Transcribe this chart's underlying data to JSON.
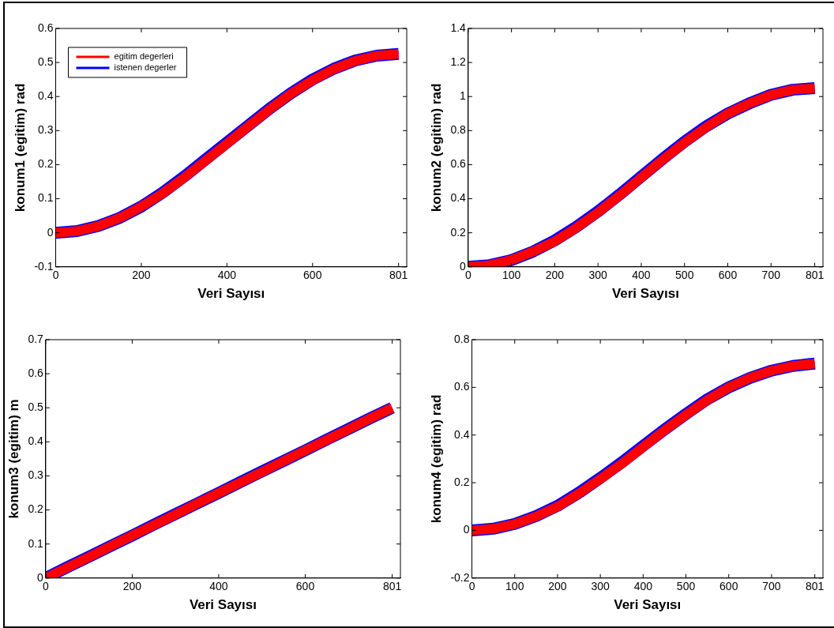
{
  "chart_data": [
    {
      "type": "line",
      "xlabel": "Veri Sayısı",
      "ylabel": "konum1 (egitim) rad",
      "legend": "top left",
      "x": [
        0,
        50,
        100,
        150,
        200,
        250,
        300,
        350,
        400,
        450,
        500,
        550,
        600,
        650,
        700,
        750,
        801
      ],
      "xlim": [
        0,
        820
      ],
      "xticks": [
        0,
        200,
        400,
        600,
        801
      ],
      "ylim": [
        -0.1,
        0.6
      ],
      "yticks": [
        -0.1,
        0,
        0.1,
        0.2,
        0.3,
        0.4,
        0.5,
        0.6
      ],
      "series": [
        {
          "name": "egitim degerleri",
          "color": "#ff0000",
          "values": [
            0,
            0.005,
            0.02,
            0.044,
            0.077,
            0.116,
            0.162,
            0.212,
            0.262,
            0.313,
            0.363,
            0.409,
            0.448,
            0.481,
            0.505,
            0.52,
            0.525
          ]
        },
        {
          "name": "istenen degerler",
          "color": "#0000ff",
          "values": [
            0,
            0.005,
            0.02,
            0.044,
            0.077,
            0.118,
            0.165,
            0.215,
            0.265,
            0.315,
            0.365,
            0.41,
            0.45,
            0.482,
            0.506,
            0.52,
            0.525
          ]
        }
      ]
    },
    {
      "type": "line",
      "xlabel": "Veri Sayısı",
      "ylabel": "konum2 (egitim) rad",
      "x": [
        0,
        50,
        100,
        150,
        200,
        250,
        300,
        350,
        400,
        450,
        500,
        550,
        600,
        650,
        700,
        750,
        801
      ],
      "xlim": [
        0,
        820
      ],
      "xticks": [
        0,
        100,
        200,
        300,
        400,
        500,
        600,
        700,
        801
      ],
      "ylim": [
        0,
        1.4
      ],
      "yticks": [
        0,
        0.2,
        0.4,
        0.6,
        0.8,
        1,
        1.2,
        1.4
      ],
      "series": [
        {
          "color": "#ff0000",
          "values": [
            0,
            0.01,
            0.04,
            0.09,
            0.15,
            0.23,
            0.32,
            0.42,
            0.525,
            0.63,
            0.73,
            0.82,
            0.9,
            0.96,
            1.01,
            1.04,
            1.05
          ]
        },
        {
          "color": "#0000ff",
          "values": [
            0,
            0.01,
            0.04,
            0.09,
            0.155,
            0.235,
            0.325,
            0.425,
            0.53,
            0.635,
            0.735,
            0.825,
            0.9,
            0.96,
            1.01,
            1.04,
            1.05
          ]
        }
      ]
    },
    {
      "type": "line",
      "xlabel": "Veri Sayısı",
      "ylabel": "konum3 (egitim) m",
      "x": [
        0,
        50,
        100,
        150,
        200,
        250,
        300,
        350,
        400,
        450,
        500,
        550,
        600,
        650,
        700,
        750,
        801
      ],
      "xlim": [
        0,
        820
      ],
      "xticks": [
        0,
        200,
        400,
        600,
        801
      ],
      "ylim": [
        0,
        0.7
      ],
      "yticks": [
        0,
        0.1,
        0.2,
        0.3,
        0.4,
        0.5,
        0.6,
        0.7
      ],
      "series": [
        {
          "color": "#ff0000",
          "values": [
            0,
            0.031,
            0.062,
            0.094,
            0.125,
            0.156,
            0.187,
            0.219,
            0.25,
            0.281,
            0.312,
            0.344,
            0.375,
            0.406,
            0.437,
            0.469,
            0.5
          ]
        },
        {
          "color": "#0000ff",
          "values": [
            0,
            0.032,
            0.063,
            0.094,
            0.125,
            0.157,
            0.188,
            0.219,
            0.25,
            0.282,
            0.313,
            0.344,
            0.375,
            0.407,
            0.438,
            0.469,
            0.5
          ]
        }
      ]
    },
    {
      "type": "line",
      "xlabel": "Veri Sayısı",
      "ylabel": "konum4 (egitim) rad",
      "x": [
        0,
        50,
        100,
        150,
        200,
        250,
        300,
        350,
        400,
        450,
        500,
        550,
        600,
        650,
        700,
        750,
        801
      ],
      "xlim": [
        0,
        820
      ],
      "xticks": [
        0,
        100,
        200,
        300,
        400,
        500,
        600,
        700,
        801
      ],
      "ylim": [
        -0.2,
        0.8
      ],
      "yticks": [
        -0.2,
        0,
        0.2,
        0.4,
        0.6,
        0.8
      ],
      "series": [
        {
          "color": "#ff0000",
          "values": [
            0,
            0.007,
            0.027,
            0.059,
            0.1,
            0.155,
            0.216,
            0.28,
            0.35,
            0.42,
            0.485,
            0.547,
            0.6,
            0.64,
            0.67,
            0.69,
            0.7
          ]
        },
        {
          "color": "#0000ff",
          "values": [
            0,
            0.007,
            0.027,
            0.06,
            0.103,
            0.158,
            0.22,
            0.285,
            0.355,
            0.423,
            0.488,
            0.55,
            0.6,
            0.64,
            0.67,
            0.69,
            0.7
          ]
        }
      ]
    }
  ]
}
